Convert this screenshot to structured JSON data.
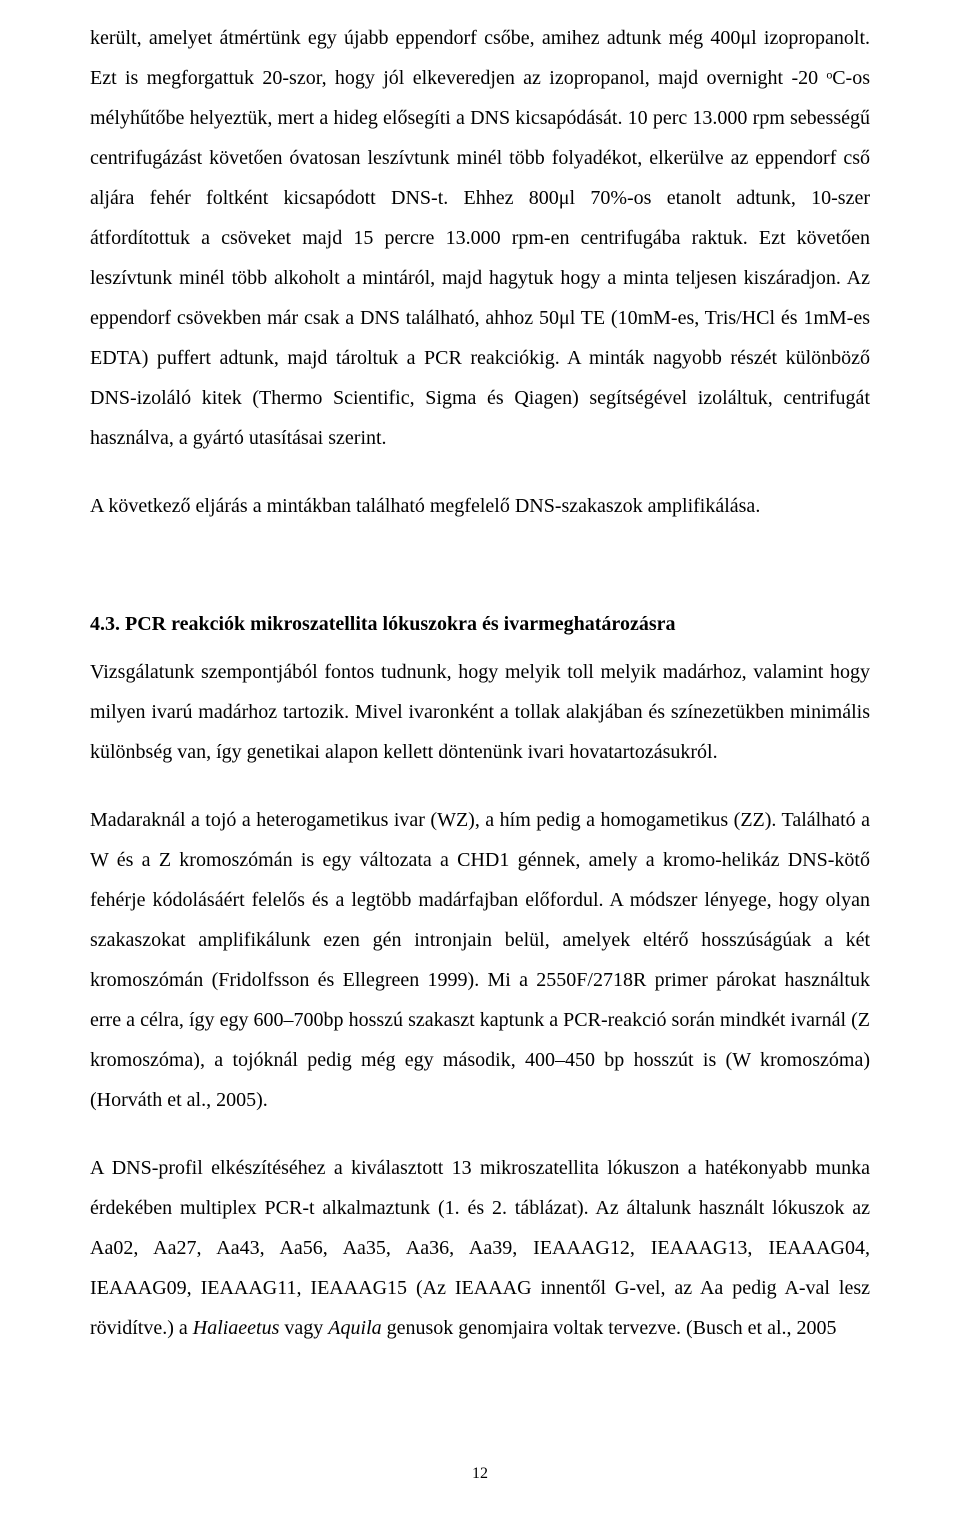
{
  "para1_html": "került, amelyet átmértünk egy újabb eppendorf csőbe, amihez adtunk még 400μl izopropanolt. Ezt is megforgattuk 20-szor, hogy jól elkeveredjen az izopropanol, majd overnight -20 ᵒC-os mélyhűtőbe helyeztük, mert a hideg elősegíti a DNS kicsapódását. 10 perc 13.000 rpm sebességű centrifugázást követően óvatosan leszívtunk minél több folyadékot, elkerülve az eppendorf cső aljára fehér foltként kicsapódott DNS-t. Ehhez 800μl 70%-os etanolt adtunk, 10-szer átfordítottuk a csöveket majd 15 percre 13.000 rpm-en centrifugába raktuk. Ezt követően leszívtunk minél több alkoholt a mintáról, majd hagytuk hogy a minta teljesen kiszáradjon. Az eppendorf csövekben már csak a DNS található, ahhoz 50μl TE (10mM-es, Tris/HCl és 1mM-es EDTA) puffert adtunk, majd tároltuk a PCR reakciókig. A minták nagyobb részét különböző DNS-izoláló kitek (Thermo Scientific, Sigma és Qiagen) segítségével izoláltuk, centrifugát használva, a gyártó utasításai szerint.",
  "para2": "A következő eljárás a mintákban található megfelelő DNS-szakaszok amplifikálása.",
  "heading": "4.3. PCR reakciók mikroszatellita lókuszokra és ivarmeghatározásra",
  "para3": "Vizsgálatunk szempontjából fontos tudnunk, hogy melyik toll melyik madárhoz, valamint hogy milyen ivarú madárhoz tartozik. Mivel ivaronként a tollak alakjában és színezetükben minimális különbség van, így genetikai alapon kellett döntenünk ivari hovatartozásukról.",
  "para4": "Madaraknál a tojó a heterogametikus ivar (WZ), a hím pedig a homogametikus (ZZ). Található a W és a Z kromoszómán is egy változata a CHD1 génnek, amely a kromo-helikáz DNS-kötő fehérje kódolásáért felelős és a legtöbb madárfajban előfordul. A módszer lényege, hogy olyan szakaszokat amplifikálunk ezen gén intronjain belül, amelyek eltérő hosszúságúak a két kromoszómán (Fridolfsson és Ellegreen 1999). Mi a 2550F/2718R primer párokat használtuk erre a célra, így egy 600–700bp hosszú szakaszt kaptunk a PCR-reakció során mindkét ivarnál (Z kromoszóma), a tojóknál pedig még egy második, 400–450 bp hosszút is (W kromoszóma) (Horváth et al., 2005).",
  "para5_html": "A DNS-profil elkészítéséhez a kiválasztott 13 mikroszatellita lókuszon a hatékonyabb munka érdekében multiplex PCR-t alkalmaztunk (1. és 2. táblázat). Az általunk használt lókuszok az Aa02, Aa27, Aa43, Aa56, Aa35, Aa36, Aa39, IEAAAG12, IEAAAG13, IEAAAG04, IEAAAG09, IEAAAG11, IEAAAG15 (Az IEAAAG innentől G-vel, az Aa pedig A-val lesz rövidítve.) a <span class=\"italic\">Haliaeetus</span> vagy <span class=\"italic\">Aquila</span> genusok genomjaira voltak tervezve. (Busch et al., 2005",
  "page_number": "12"
}
